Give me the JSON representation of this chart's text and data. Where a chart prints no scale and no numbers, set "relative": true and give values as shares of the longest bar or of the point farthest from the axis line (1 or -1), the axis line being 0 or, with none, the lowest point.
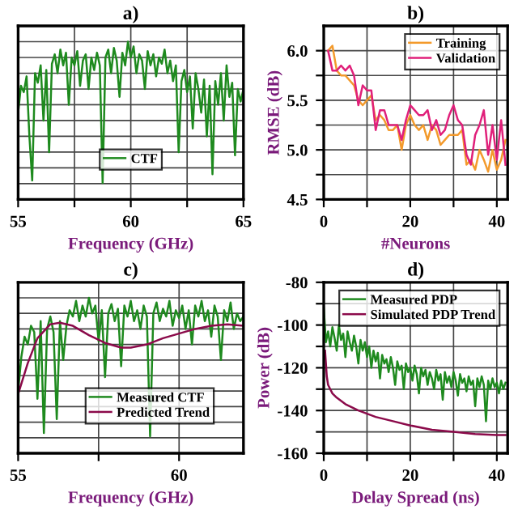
{
  "chart_data": [
    {
      "type": "line",
      "title": "a)",
      "xlabel": "Frequency (GHz)",
      "relative": true,
      "xlim": [
        55,
        65
      ],
      "xticks": [
        55,
        {
          "value": 57.5,
          "label": null
        },
        60,
        {
          "value": 62.5,
          "label": null
        },
        65
      ],
      "grid": true,
      "legend": "bottom",
      "tick_labels": "x",
      "series": [
        {
          "name": "CTF",
          "color": "#1e8a1e",
          "x": [
            55.0,
            55.125,
            55.25,
            55.375,
            55.5,
            55.625,
            55.75,
            55.875,
            56.0,
            56.125,
            56.25,
            56.375,
            56.5,
            56.625,
            56.75,
            56.875,
            57.0,
            57.125,
            57.25,
            57.375,
            57.5,
            57.625,
            57.75,
            57.875,
            58.0,
            58.125,
            58.25,
            58.375,
            58.5,
            58.625,
            58.75,
            58.875,
            59.0,
            59.125,
            59.25,
            59.375,
            59.5,
            59.625,
            59.75,
            59.875,
            60.0,
            60.125,
            60.25,
            60.375,
            60.5,
            60.625,
            60.75,
            60.875,
            61.0,
            61.125,
            61.25,
            61.375,
            61.5,
            61.625,
            61.75,
            61.875,
            62.0,
            62.125,
            62.25,
            62.375,
            62.5,
            62.625,
            62.75,
            62.875,
            63.0,
            63.125,
            63.25,
            63.375,
            63.5,
            63.625,
            63.75,
            63.875,
            64.0,
            64.125,
            64.25,
            64.375,
            64.5,
            64.625,
            64.75,
            64.875,
            65.0
          ],
          "values": [
            0.55,
            0.72,
            0.68,
            0.78,
            0.4,
            0.12,
            0.8,
            0.74,
            0.85,
            0.5,
            0.82,
            0.3,
            0.86,
            0.92,
            0.8,
            0.95,
            0.85,
            0.93,
            0.6,
            0.9,
            0.85,
            0.94,
            0.72,
            0.88,
            0.92,
            0.7,
            0.9,
            0.82,
            0.93,
            0.85,
            0.105,
            0.9,
            0.95,
            0.8,
            0.96,
            0.88,
            0.65,
            0.93,
            0.85,
            1.0,
            0.9,
            0.97,
            0.8,
            0.92,
            0.88,
            0.7,
            0.94,
            0.85,
            0.92,
            0.78,
            0.9,
            0.86,
            0.95,
            0.8,
            0.88,
            0.75,
            0.85,
            0.3,
            0.75,
            0.82,
            0.68,
            0.78,
            0.45,
            0.8,
            0.7,
            0.55,
            0.76,
            0.4,
            0.72,
            0.16,
            0.75,
            0.6,
            0.8,
            0.5,
            0.85,
            0.65,
            0.74,
            0.28,
            0.7,
            0.62,
            0.7
          ]
        }
      ]
    },
    {
      "type": "line",
      "title": "b)",
      "xlabel": "#Neurons",
      "ylabel": "RMSE (dB)",
      "xlim": [
        0,
        42.5
      ],
      "xticks": [
        0,
        {
          "value": 10,
          "label": null
        },
        20,
        {
          "value": 30,
          "label": null
        },
        40
      ],
      "ylim": [
        4.5,
        6.25
      ],
      "yticks": [
        4.5,
        {
          "value": 4.75,
          "label": null
        },
        {
          "value": 5,
          "label": "5.0"
        },
        {
          "value": 5.25,
          "label": null
        },
        5.5,
        {
          "value": 5.75,
          "label": null
        },
        {
          "value": 6,
          "label": "6.0"
        }
      ],
      "grid": true,
      "legend": "top right",
      "series": [
        {
          "name": "Training",
          "color": "#f39a2c",
          "x": [
            1,
            2,
            3,
            4,
            5,
            6,
            7,
            8,
            9,
            10,
            11,
            12,
            13,
            14,
            15,
            16,
            17,
            18,
            19,
            20,
            21,
            22,
            23,
            24,
            25,
            26,
            27,
            28,
            29,
            30,
            31,
            32,
            33,
            34,
            35,
            36,
            37,
            38,
            39,
            40,
            41,
            42
          ],
          "values": [
            6.0,
            6.05,
            5.8,
            5.75,
            5.75,
            5.7,
            5.65,
            5.5,
            5.45,
            5.5,
            5.55,
            5.3,
            5.35,
            5.3,
            5.2,
            5.2,
            5.25,
            5.0,
            5.25,
            5.35,
            5.25,
            5.2,
            5.25,
            5.1,
            5.25,
            5.2,
            5.05,
            5.1,
            5.15,
            5.15,
            5.15,
            5.2,
            4.85,
            4.9,
            4.8,
            5.0,
            4.9,
            4.78,
            5.0,
            4.8,
            4.9,
            5.1
          ]
        },
        {
          "name": "Validation",
          "color": "#e0207a",
          "x": [
            1,
            2,
            3,
            4,
            5,
            6,
            7,
            8,
            9,
            10,
            11,
            12,
            13,
            14,
            15,
            16,
            17,
            18,
            19,
            20,
            21,
            22,
            23,
            24,
            25,
            26,
            27,
            28,
            29,
            30,
            31,
            32,
            33,
            34,
            35,
            36,
            37,
            38,
            39,
            40,
            41,
            42
          ],
          "values": [
            6.0,
            5.8,
            5.8,
            5.85,
            5.8,
            5.85,
            5.75,
            5.45,
            5.65,
            5.6,
            5.6,
            5.2,
            5.4,
            5.4,
            5.25,
            5.25,
            5.25,
            5.1,
            5.3,
            5.45,
            5.4,
            5.35,
            5.35,
            5.4,
            5.2,
            5.3,
            5.15,
            5.2,
            5.35,
            5.45,
            5.3,
            5.25,
            4.95,
            4.85,
            5.15,
            5.25,
            5.4,
            4.95,
            5.25,
            4.9,
            5.3,
            4.85
          ]
        }
      ]
    },
    {
      "type": "line",
      "title": "c)",
      "xlabel": "Frequency (GHz)",
      "relative": true,
      "xlim": [
        55,
        62
      ],
      "xticks": [
        55,
        {
          "value": 57.5,
          "label": null
        },
        60
      ],
      "grid": true,
      "legend": "bottom right",
      "tick_labels": "x",
      "series": [
        {
          "name": "Measured CTF",
          "color": "#1e8a1e",
          "x": [
            55.0,
            55.1,
            55.2,
            55.3,
            55.4,
            55.5,
            55.6,
            55.7,
            55.8,
            55.9,
            56.0,
            56.1,
            56.2,
            56.3,
            56.4,
            56.5,
            56.6,
            56.7,
            56.8,
            56.9,
            57.0,
            57.1,
            57.2,
            57.3,
            57.4,
            57.5,
            57.6,
            57.7,
            57.8,
            57.9,
            58.0,
            58.1,
            58.2,
            58.3,
            58.4,
            58.5,
            58.6,
            58.7,
            58.8,
            58.9,
            59.0,
            59.1,
            59.2,
            59.3,
            59.4,
            59.5,
            59.6,
            59.7,
            59.8,
            59.9,
            60.0,
            60.1,
            60.2,
            60.3,
            60.4,
            60.5,
            60.6,
            60.7,
            60.8,
            60.9,
            61.0,
            61.1,
            61.2,
            61.3,
            61.4,
            61.5,
            61.6,
            61.7,
            61.8,
            61.9,
            62.0
          ],
          "values": [
            0.4,
            0.62,
            0.75,
            0.7,
            0.82,
            0.78,
            0.35,
            0.85,
            0.13,
            0.8,
            0.88,
            0.78,
            0.22,
            0.85,
            0.6,
            0.82,
            0.92,
            0.88,
            0.98,
            0.85,
            0.95,
            0.88,
            1.0,
            0.9,
            0.95,
            0.72,
            0.92,
            0.49,
            0.9,
            0.96,
            0.85,
            0.93,
            0.56,
            0.95,
            0.88,
            0.98,
            0.85,
            0.92,
            0.8,
            0.95,
            0.88,
            0.11,
            0.9,
            0.97,
            0.85,
            0.93,
            0.88,
            0.98,
            0.82,
            0.92,
            0.87,
            0.95,
            0.8,
            0.92,
            0.7,
            0.95,
            0.88,
            0.98,
            0.85,
            0.92,
            0.75,
            0.95,
            0.88,
            0.6,
            0.92,
            0.85,
            0.97,
            0.8,
            0.9,
            0.85,
            0.88
          ]
        },
        {
          "name": "Predicted Trend",
          "color": "#8b0a4a",
          "x": [
            55,
            55.3,
            55.6,
            56.0,
            56.3,
            56.7,
            57.2,
            57.7,
            58.2,
            58.5,
            59.0,
            59.5,
            60.0,
            60.5,
            61.0,
            61.5,
            62.0
          ],
          "values": [
            0.38,
            0.58,
            0.74,
            0.83,
            0.84,
            0.82,
            0.76,
            0.71,
            0.68,
            0.68,
            0.7,
            0.74,
            0.77,
            0.8,
            0.82,
            0.83,
            0.82
          ]
        }
      ]
    },
    {
      "type": "line",
      "title": "d)",
      "xlabel": "Delay Spread (ns)",
      "ylabel": "Power (dB)",
      "xlim": [
        0,
        42.5
      ],
      "xticks": [
        0,
        {
          "value": 10,
          "label": null
        },
        20,
        {
          "value": 30,
          "label": null
        },
        40
      ],
      "ylim": [
        -160,
        -80
      ],
      "yticks": [
        -160,
        {
          "value": -150,
          "label": null
        },
        -140,
        {
          "value": -130,
          "label": null
        },
        -120,
        {
          "value": -110,
          "label": null
        },
        -100,
        {
          "value": -90,
          "label": null
        },
        -80
      ],
      "grid": true,
      "legend": "top right",
      "series": [
        {
          "name": "Measured PDP",
          "color": "#1e8a1e",
          "x": [
            0,
            0.5,
            1,
            1.5,
            2,
            2.5,
            3,
            3.5,
            4,
            4.5,
            5,
            5.5,
            6,
            6.5,
            7,
            7.5,
            8,
            8.5,
            9,
            9.5,
            10,
            10.5,
            11,
            11.5,
            12,
            12.5,
            13,
            13.5,
            14,
            14.5,
            15,
            15.5,
            16,
            16.5,
            17,
            17.5,
            18,
            18.5,
            19,
            19.5,
            20,
            20.5,
            21,
            21.5,
            22,
            22.5,
            23,
            23.5,
            24,
            24.5,
            25,
            25.5,
            26,
            26.5,
            27,
            27.5,
            28,
            28.5,
            29,
            29.5,
            30,
            30.5,
            31,
            31.5,
            32,
            32.5,
            33,
            33.5,
            34,
            34.5,
            35,
            35.5,
            36,
            36.5,
            37,
            37.5,
            38,
            38.5,
            39,
            39.5,
            40,
            40.5,
            41,
            41.5,
            42
          ],
          "values": [
            -92,
            -108,
            -103,
            -110,
            -101,
            -106,
            -112,
            -100,
            -107,
            -104,
            -115,
            -103,
            -108,
            -112,
            -105,
            -110,
            -118,
            -107,
            -112,
            -108,
            -115,
            -110,
            -120,
            -112,
            -117,
            -113,
            -125,
            -114,
            -118,
            -116,
            -122,
            -115,
            -120,
            -128,
            -117,
            -121,
            -119,
            -130,
            -118,
            -122,
            -120,
            -126,
            -119,
            -123,
            -132,
            -120,
            -124,
            -121,
            -128,
            -122,
            -125,
            -130,
            -121,
            -126,
            -123,
            -135,
            -122,
            -127,
            -124,
            -129,
            -122,
            -126,
            -133,
            -123,
            -127,
            -125,
            -131,
            -124,
            -128,
            -126,
            -138,
            -125,
            -129,
            -124,
            -128,
            -145,
            -126,
            -130,
            -125,
            -129,
            -127,
            -132,
            -126,
            -130,
            -127
          ]
        },
        {
          "name": "Simulated PDP Trend",
          "color": "#8b0a4a",
          "x": [
            0.3,
            0.7,
            1,
            2,
            3,
            5,
            8,
            12,
            16,
            20,
            25,
            30,
            35,
            40,
            42
          ],
          "values": [
            -112,
            -124,
            -128,
            -132,
            -134,
            -137,
            -140,
            -143,
            -145,
            -147,
            -149,
            -150,
            -151,
            -151.5,
            -151.5
          ]
        }
      ]
    }
  ]
}
